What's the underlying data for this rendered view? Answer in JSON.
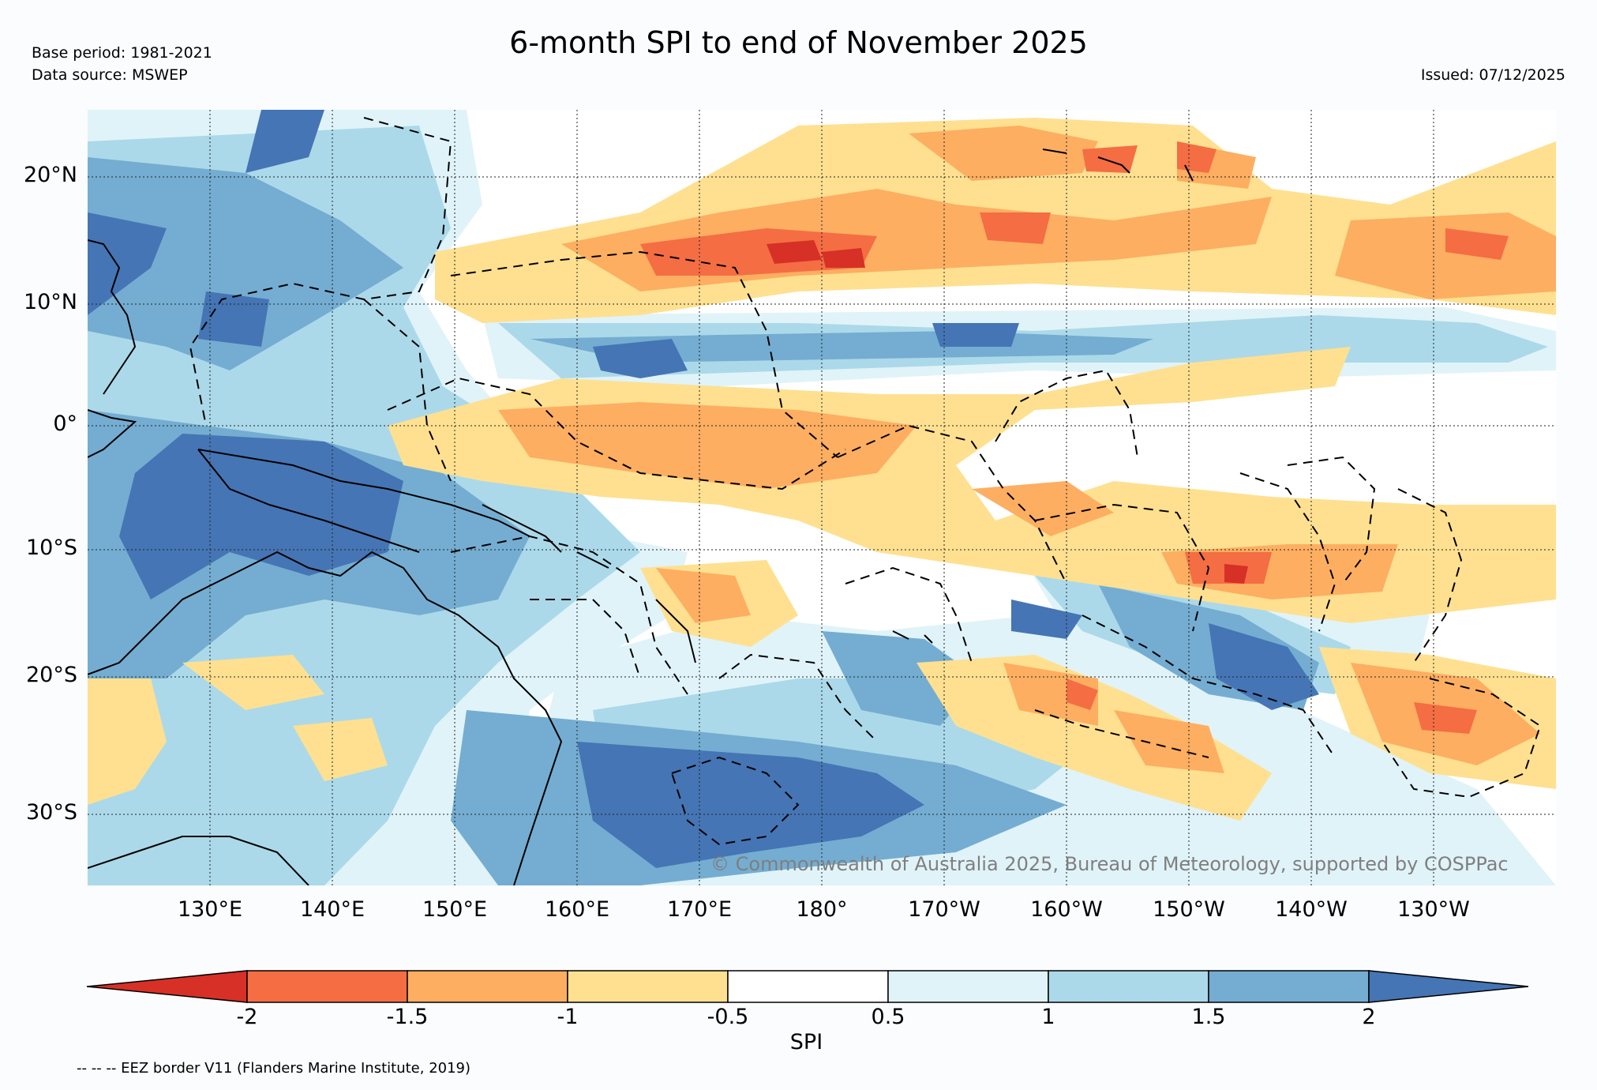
{
  "title": "6-month SPI to end of November 2025",
  "base_period": "Base period: 1981-2021",
  "data_source": "Data source: MSWEP",
  "issued": "Issued: 07/12/2025",
  "copyright": "© Commonwealth of Australia 2025, Bureau of Meteorology, supported by COSPPac",
  "eez_note": "-- -- -- EEZ border V11 (Flanders Marine Institute, 2019)",
  "map": {
    "lat_range": [
      -35,
      25
    ],
    "lon_range": [
      "120°E",
      "240°E"
    ],
    "lat_labels": [
      "20°N",
      "10°N",
      "0°",
      "10°S",
      "20°S",
      "30°S"
    ],
    "lon_labels": [
      "130°E",
      "140°E",
      "150°E",
      "160°E",
      "170°E",
      "180°",
      "170°W",
      "160°W",
      "150°W",
      "140°W",
      "130°W"
    ]
  },
  "colorbar": {
    "label": "SPI",
    "ticks": [
      "-2",
      "-1.5",
      "-1",
      "-0.5",
      "0.5",
      "1",
      "1.5",
      "2"
    ],
    "colors": {
      "lt_-2": "#d73027",
      "-2_-1.5": "#f46d43",
      "-1.5_-1": "#fdae61",
      "-1_-0.5": "#fee090",
      "-0.5_0.5": "#ffffff",
      "0.5_1": "#e0f3f8",
      "1_1.5": "#abd9e9",
      "1.5_2": "#74add1",
      "gt_2": "#4575b4"
    }
  },
  "chart_data": {
    "type": "heatmap",
    "title": "6-month SPI to end of November 2025",
    "colorbar_label": "SPI",
    "bins": [
      -2,
      -1.5,
      -1,
      -0.5,
      0.5,
      1,
      1.5,
      2
    ],
    "xlabels": [
      "130°E",
      "140°E",
      "150°E",
      "160°E",
      "170°E",
      "180°",
      "170°W",
      "160°W",
      "150°W",
      "140°W",
      "130°W"
    ],
    "ylabels": [
      "20°N",
      "10°N",
      "0°",
      "10°S",
      "20°S",
      "30°S"
    ]
  }
}
